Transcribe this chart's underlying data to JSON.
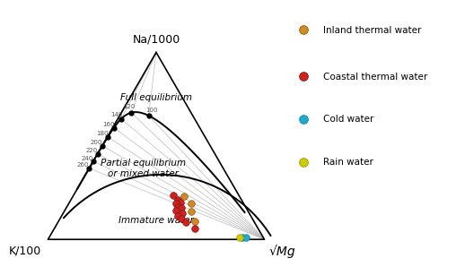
{
  "title_top": "Na/1000",
  "title_left": "K/100",
  "title_right": "√Mg",
  "legend_entries": [
    {
      "label": "Inland thermal water",
      "color": "#D4882A",
      "edgecolor": "#8B5E0A"
    },
    {
      "label": "Coastal thermal water",
      "color": "#CC2222",
      "edgecolor": "#881111"
    },
    {
      "label": "Cold water",
      "color": "#22AACC",
      "edgecolor": "#1188AA"
    },
    {
      "label": "Rain water",
      "color": "#CCCC00",
      "edgecolor": "#999900"
    }
  ],
  "temp_labels": [
    100,
    120,
    140,
    160,
    180,
    200,
    220,
    240,
    260
  ],
  "giggenbach_na_k_a": 900,
  "giggenbach_na_k_b": -0.9,
  "giggenbach_k_mg_a": -4410,
  "giggenbach_k_mg_b": 14.0,
  "background_color": "white",
  "grid_color": "#BBBBBB",
  "curve_color": "black"
}
